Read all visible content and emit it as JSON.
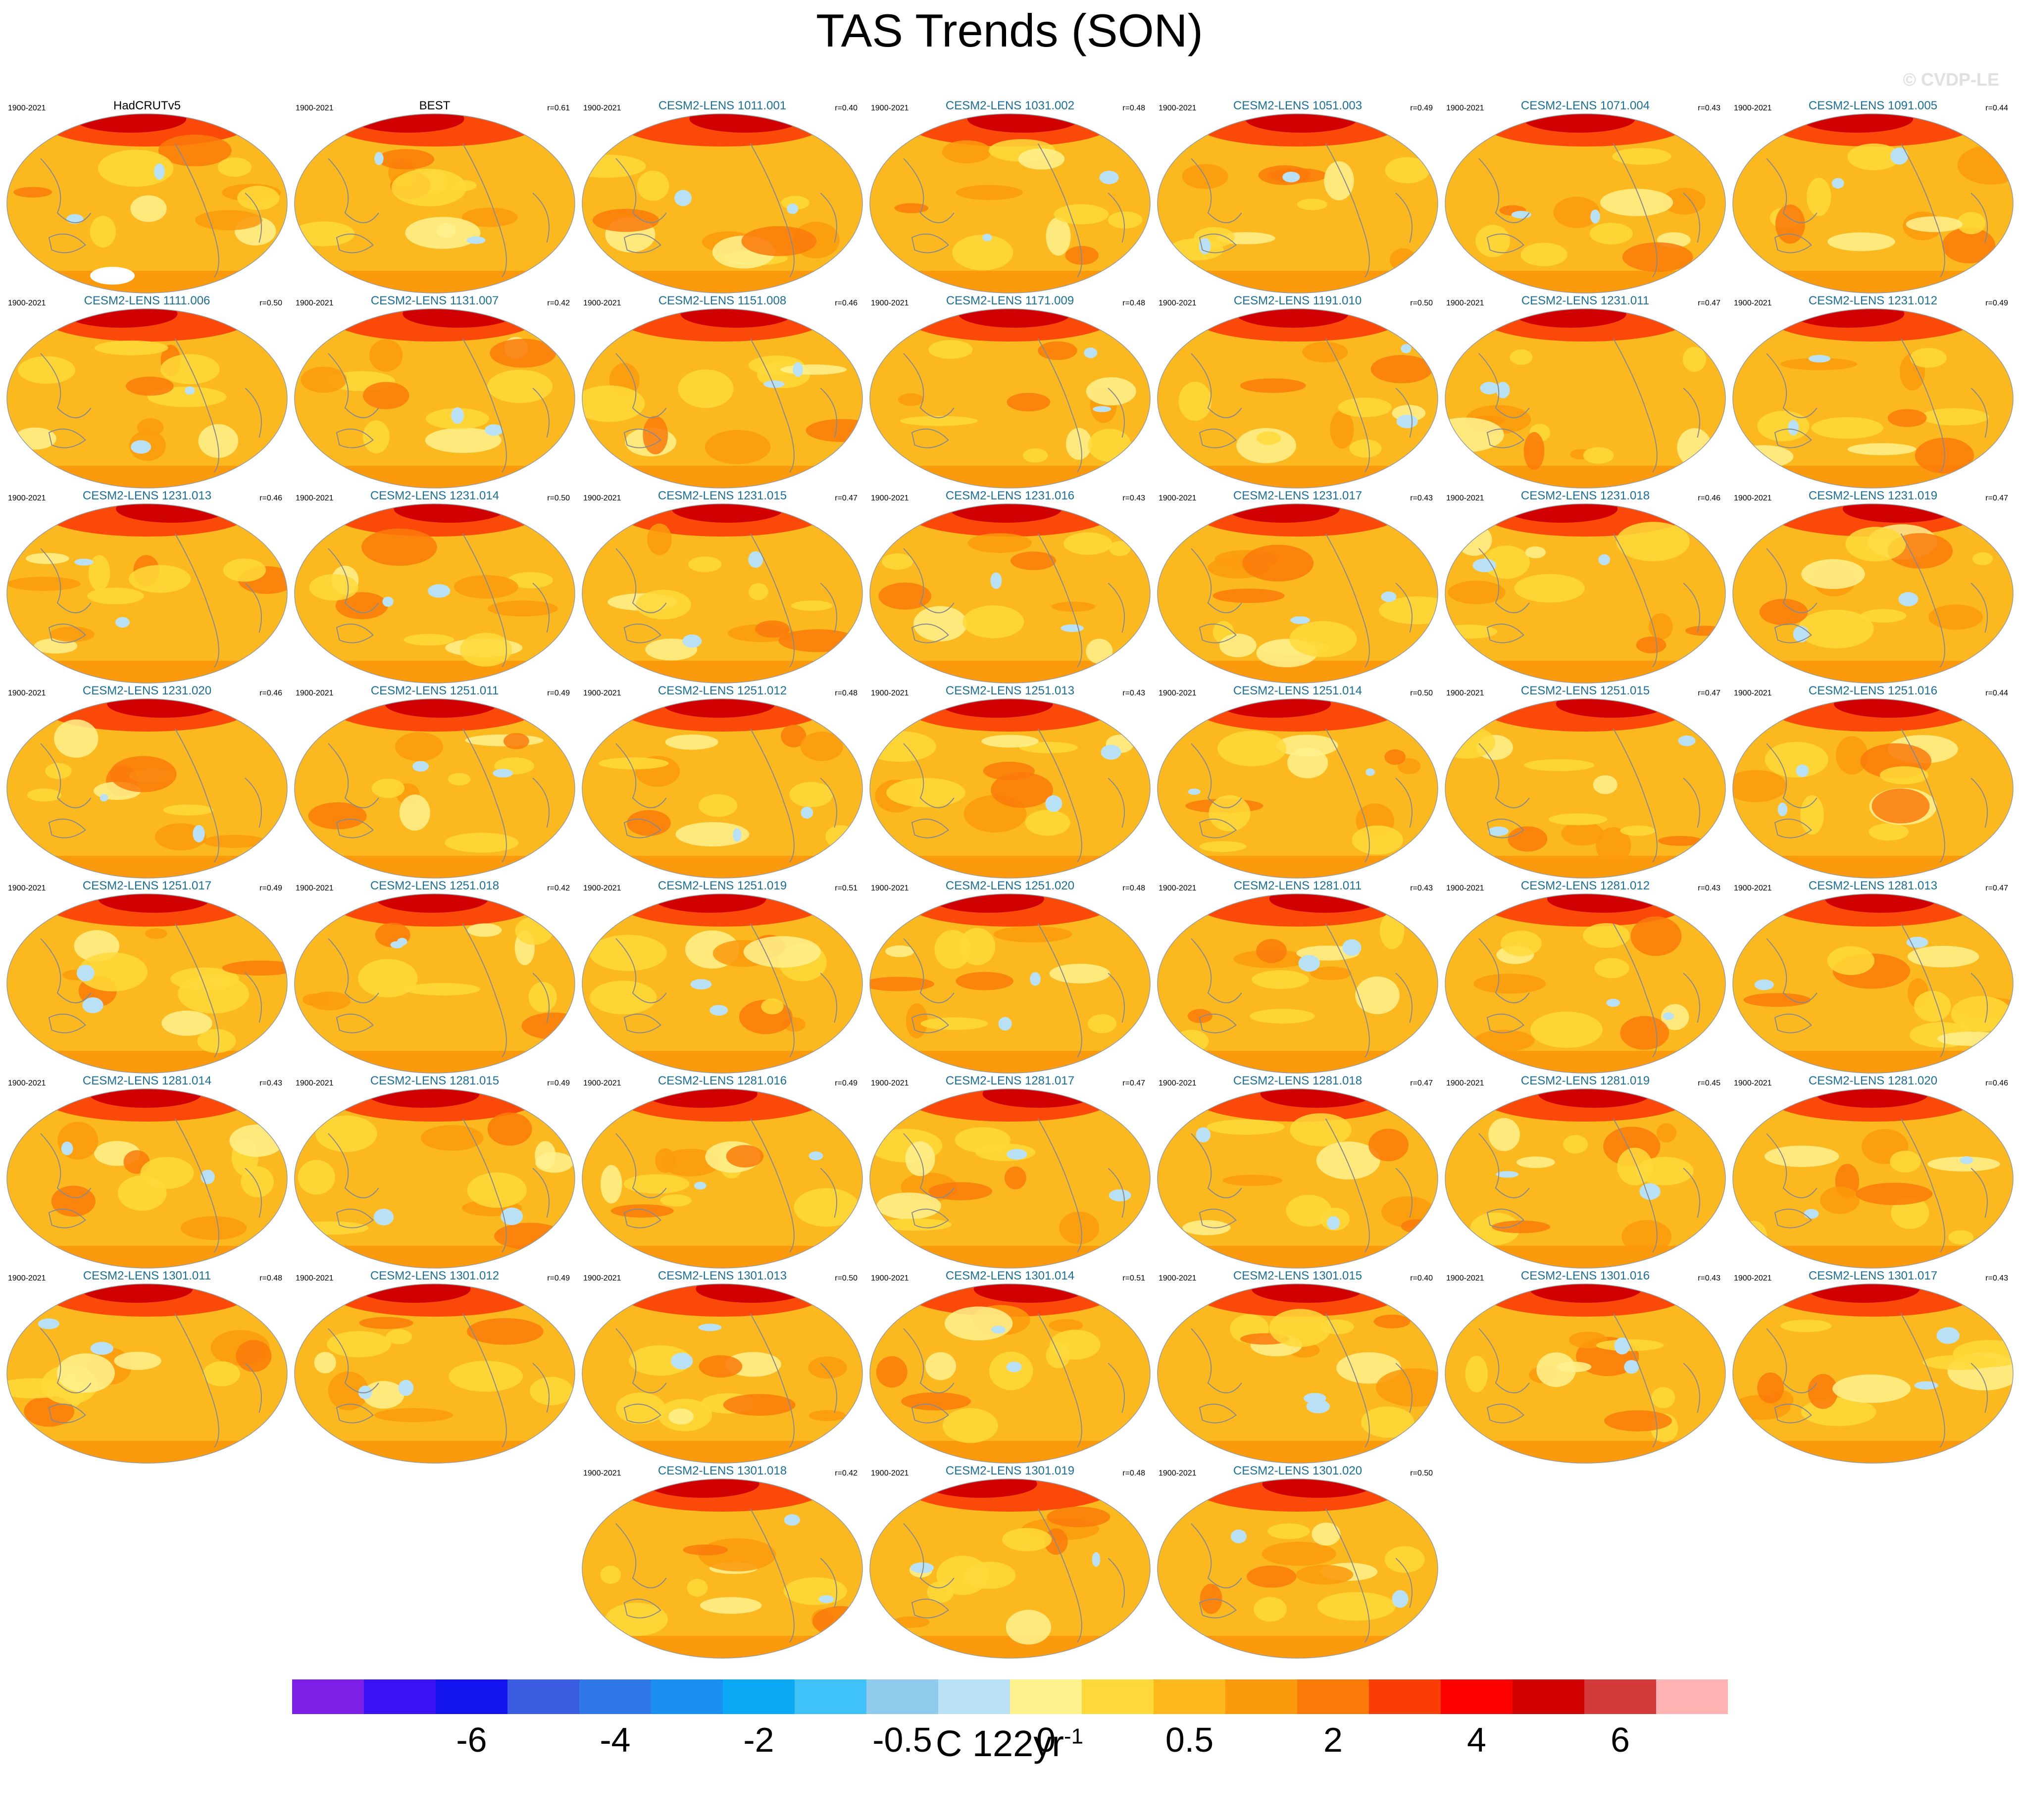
{
  "title": "TAS Trends (SON)",
  "watermark": "© CVDP-LE",
  "period": "1900-2021",
  "colors": {
    "observation_title": "#000000",
    "model_title": "#1a6f9a",
    "coastline": "#8a8a8a",
    "map_base": "#fbb91f"
  },
  "panels": [
    {
      "name": "HadCRUTv5",
      "r": "",
      "obs": true
    },
    {
      "name": "BEST",
      "r": "r=0.61",
      "obs": true
    },
    {
      "name": "CESM2-LENS 1011.001",
      "r": "r=0.40"
    },
    {
      "name": "CESM2-LENS 1031.002",
      "r": "r=0.48"
    },
    {
      "name": "CESM2-LENS 1051.003",
      "r": "r=0.49"
    },
    {
      "name": "CESM2-LENS 1071.004",
      "r": "r=0.43"
    },
    {
      "name": "CESM2-LENS 1091.005",
      "r": "r=0.44"
    },
    {
      "name": "CESM2-LENS 1111.006",
      "r": "r=0.50"
    },
    {
      "name": "CESM2-LENS 1131.007",
      "r": "r=0.42"
    },
    {
      "name": "CESM2-LENS 1151.008",
      "r": "r=0.46"
    },
    {
      "name": "CESM2-LENS 1171.009",
      "r": "r=0.48"
    },
    {
      "name": "CESM2-LENS 1191.010",
      "r": "r=0.50"
    },
    {
      "name": "CESM2-LENS 1231.011",
      "r": "r=0.47"
    },
    {
      "name": "CESM2-LENS 1231.012",
      "r": "r=0.49"
    },
    {
      "name": "CESM2-LENS 1231.013",
      "r": "r=0.46"
    },
    {
      "name": "CESM2-LENS 1231.014",
      "r": "r=0.50"
    },
    {
      "name": "CESM2-LENS 1231.015",
      "r": "r=0.47"
    },
    {
      "name": "CESM2-LENS 1231.016",
      "r": "r=0.43"
    },
    {
      "name": "CESM2-LENS 1231.017",
      "r": "r=0.43"
    },
    {
      "name": "CESM2-LENS 1231.018",
      "r": "r=0.46"
    },
    {
      "name": "CESM2-LENS 1231.019",
      "r": "r=0.47"
    },
    {
      "name": "CESM2-LENS 1231.020",
      "r": "r=0.46"
    },
    {
      "name": "CESM2-LENS 1251.011",
      "r": "r=0.49"
    },
    {
      "name": "CESM2-LENS 1251.012",
      "r": "r=0.48"
    },
    {
      "name": "CESM2-LENS 1251.013",
      "r": "r=0.43"
    },
    {
      "name": "CESM2-LENS 1251.014",
      "r": "r=0.50"
    },
    {
      "name": "CESM2-LENS 1251.015",
      "r": "r=0.47"
    },
    {
      "name": "CESM2-LENS 1251.016",
      "r": "r=0.44"
    },
    {
      "name": "CESM2-LENS 1251.017",
      "r": "r=0.49"
    },
    {
      "name": "CESM2-LENS 1251.018",
      "r": "r=0.42"
    },
    {
      "name": "CESM2-LENS 1251.019",
      "r": "r=0.51"
    },
    {
      "name": "CESM2-LENS 1251.020",
      "r": "r=0.48"
    },
    {
      "name": "CESM2-LENS 1281.011",
      "r": "r=0.43"
    },
    {
      "name": "CESM2-LENS 1281.012",
      "r": "r=0.43"
    },
    {
      "name": "CESM2-LENS 1281.013",
      "r": "r=0.47"
    },
    {
      "name": "CESM2-LENS 1281.014",
      "r": "r=0.43"
    },
    {
      "name": "CESM2-LENS 1281.015",
      "r": "r=0.49"
    },
    {
      "name": "CESM2-LENS 1281.016",
      "r": "r=0.49"
    },
    {
      "name": "CESM2-LENS 1281.017",
      "r": "r=0.47"
    },
    {
      "name": "CESM2-LENS 1281.018",
      "r": "r=0.47"
    },
    {
      "name": "CESM2-LENS 1281.019",
      "r": "r=0.45"
    },
    {
      "name": "CESM2-LENS 1281.020",
      "r": "r=0.46"
    },
    {
      "name": "CESM2-LENS 1301.011",
      "r": "r=0.48"
    },
    {
      "name": "CESM2-LENS 1301.012",
      "r": "r=0.49"
    },
    {
      "name": "CESM2-LENS 1301.013",
      "r": "r=0.50"
    },
    {
      "name": "CESM2-LENS 1301.014",
      "r": "r=0.51"
    },
    {
      "name": "CESM2-LENS 1301.015",
      "r": "r=0.40"
    },
    {
      "name": "CESM2-LENS 1301.016",
      "r": "r=0.43"
    },
    {
      "name": "CESM2-LENS 1301.017",
      "r": "r=0.43"
    },
    {
      "name": "CESM2-LENS 1301.018",
      "r": "r=0.42"
    },
    {
      "name": "CESM2-LENS 1301.019",
      "r": "r=0.48"
    },
    {
      "name": "CESM2-LENS 1301.020",
      "r": "r=0.50"
    }
  ],
  "colorbar": {
    "colors": [
      "#7c20e8",
      "#3a12f5",
      "#1414f0",
      "#3a5ce0",
      "#2f78e8",
      "#1c8ff2",
      "#0aaaf5",
      "#3ec2f7",
      "#8ecbed",
      "#b9e1f5",
      "#fff18e",
      "#ffd93a",
      "#fdb91b",
      "#fb9a0d",
      "#fa7a0a",
      "#fa3d05",
      "#ff0000",
      "#d10000",
      "#d53a3a",
      "#ffb3b3"
    ],
    "labels": [
      "-6",
      "-4",
      "-2",
      "-0.5",
      "0",
      "0.5",
      "2",
      "4",
      "6"
    ],
    "label_boundaries": [
      2,
      4,
      6,
      8,
      10,
      12,
      14,
      16,
      18
    ],
    "units": "C 122yr",
    "units_exp": "-1"
  }
}
